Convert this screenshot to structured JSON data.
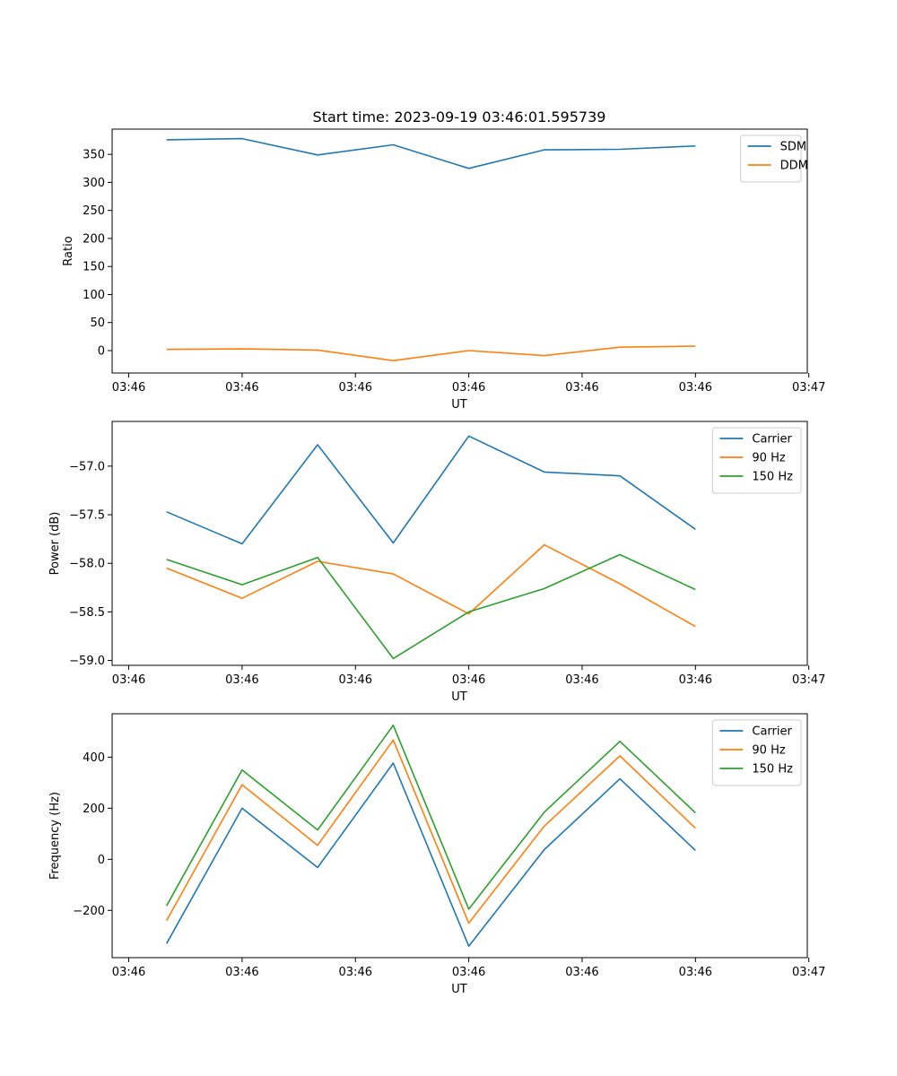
{
  "figure": {
    "title": "Start time: 2023-09-19 03:46:01.595739"
  },
  "colors": {
    "blue": "#1f77b4",
    "orange": "#ff7f0e",
    "green": "#2ca02c"
  },
  "chart_data": [
    {
      "type": "line",
      "id": "ratio",
      "title": "Start time: 2023-09-19 03:46:01.595739",
      "xlabel": "UT",
      "ylabel": "Ratio",
      "x": [
        1,
        2,
        3,
        4,
        5,
        6,
        7,
        8
      ],
      "xlim": [
        0.28,
        9.48
      ],
      "x_ticks": [
        0.5,
        2.0,
        3.5,
        5.0,
        6.5,
        8.0,
        9.5
      ],
      "x_tick_labels": [
        "03:46",
        "03:46",
        "03:46",
        "03:46",
        "03:46",
        "03:46",
        "03:47"
      ],
      "ylim": [
        -40,
        395
      ],
      "y_ticks": [
        0,
        50,
        100,
        150,
        200,
        250,
        300,
        350
      ],
      "y_tick_labels": [
        "0",
        "50",
        "100",
        "150",
        "200",
        "250",
        "300",
        "350"
      ],
      "legend_position": "top-right",
      "series": [
        {
          "name": "SDM",
          "color": "#1f77b4",
          "values": [
            376,
            378,
            349,
            367,
            325,
            358,
            359,
            365
          ]
        },
        {
          "name": "DDM",
          "color": "#ff7f0e",
          "values": [
            2,
            3,
            1,
            -18,
            0,
            -9,
            6,
            8
          ]
        }
      ]
    },
    {
      "type": "line",
      "id": "power",
      "xlabel": "UT",
      "ylabel": "Power (dB)",
      "x": [
        1,
        2,
        3,
        4,
        5,
        6,
        7,
        8
      ],
      "xlim": [
        0.28,
        9.48
      ],
      "x_ticks": [
        0.5,
        2.0,
        3.5,
        5.0,
        6.5,
        8.0,
        9.5
      ],
      "x_tick_labels": [
        "03:46",
        "03:46",
        "03:46",
        "03:46",
        "03:46",
        "03:46",
        "03:47"
      ],
      "ylim": [
        -59.05,
        -56.54
      ],
      "y_ticks": [
        -59.0,
        -58.5,
        -58.0,
        -57.5,
        -57.0
      ],
      "y_tick_labels": [
        "−59.0",
        "−58.5",
        "−58.0",
        "−57.5",
        "−57.0"
      ],
      "legend_position": "top-right",
      "series": [
        {
          "name": "Carrier",
          "color": "#1f77b4",
          "values": [
            -57.47,
            -57.8,
            -56.78,
            -57.79,
            -56.69,
            -57.06,
            -57.1,
            -57.65
          ]
        },
        {
          "name": "90 Hz",
          "color": "#ff7f0e",
          "values": [
            -58.05,
            -58.36,
            -57.98,
            -58.11,
            -58.52,
            -57.81,
            -58.21,
            -58.65
          ]
        },
        {
          "name": "150 Hz",
          "color": "#2ca02c",
          "values": [
            -57.96,
            -58.22,
            -57.94,
            -58.98,
            -58.5,
            -58.26,
            -57.91,
            -58.27
          ]
        }
      ]
    },
    {
      "type": "line",
      "id": "frequency",
      "xlabel": "UT",
      "ylabel": "Frequency (Hz)",
      "x": [
        1,
        2,
        3,
        4,
        5,
        6,
        7,
        8
      ],
      "xlim": [
        0.28,
        9.48
      ],
      "x_ticks": [
        0.5,
        2.0,
        3.5,
        5.0,
        6.5,
        8.0,
        9.5
      ],
      "x_tick_labels": [
        "03:46",
        "03:46",
        "03:46",
        "03:46",
        "03:46",
        "03:46",
        "03:47"
      ],
      "ylim": [
        -385,
        570
      ],
      "y_ticks": [
        -200,
        0,
        200,
        400
      ],
      "y_tick_labels": [
        "−200",
        "0",
        "200",
        "400"
      ],
      "legend_position": "top-right",
      "series": [
        {
          "name": "Carrier",
          "color": "#1f77b4",
          "values": [
            -330,
            200,
            -32,
            377,
            -340,
            38,
            315,
            35
          ]
        },
        {
          "name": "90 Hz",
          "color": "#ff7f0e",
          "values": [
            -240,
            292,
            55,
            467,
            -250,
            130,
            405,
            122
          ]
        },
        {
          "name": "150 Hz",
          "color": "#2ca02c",
          "values": [
            -182,
            350,
            115,
            525,
            -195,
            185,
            462,
            182
          ]
        }
      ]
    }
  ]
}
